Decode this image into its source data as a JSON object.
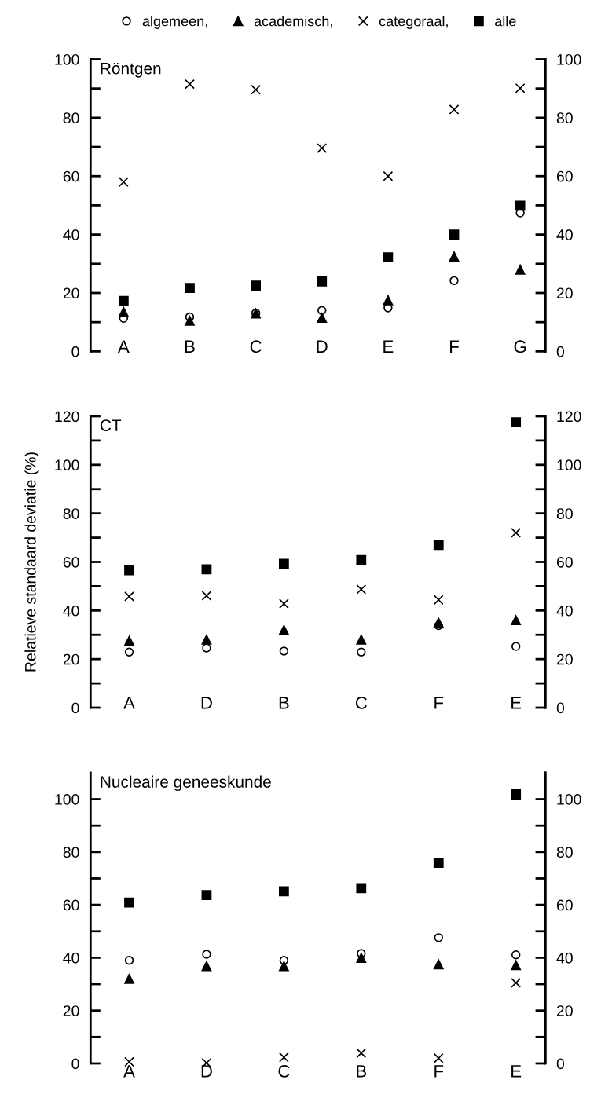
{
  "chart_data": [
    {
      "type": "scatter",
      "title": "Röntgen",
      "legend": "top",
      "categories": [
        "A",
        "B",
        "C",
        "D",
        "E",
        "F",
        "G"
      ],
      "ylim": [
        0,
        100
      ],
      "yticks": [
        0,
        {
          "value": 10,
          "label": null
        },
        20,
        {
          "value": 30,
          "label": null
        },
        40,
        {
          "value": 50,
          "label": null
        },
        60,
        {
          "value": 70,
          "label": null
        },
        80,
        {
          "value": 90,
          "label": null
        },
        100
      ],
      "y2lim": [
        0,
        100
      ],
      "y2ticks": [
        0,
        {
          "value": 10,
          "label": null
        },
        20,
        {
          "value": 30,
          "label": null
        },
        40,
        {
          "value": 50,
          "label": null
        },
        60,
        {
          "value": 70,
          "label": null
        },
        80,
        {
          "value": 90,
          "label": null
        },
        100
      ],
      "series": [
        {
          "name": "algemeen,",
          "color": "#000000",
          "marker": "circle",
          "values": [
            11.3,
            11.8,
            13.1,
            14,
            14.9,
            24.2,
            47.4
          ]
        },
        {
          "name": "academisch,",
          "color": "#000000",
          "marker": "triangle",
          "values": [
            13.5,
            10.5,
            13,
            11.5,
            17.5,
            32.5,
            28
          ]
        },
        {
          "name": "categoraal,",
          "color": "#000000",
          "marker": "cross",
          "values": [
            58,
            91.5,
            89.6,
            69.6,
            60,
            82.8,
            90.1
          ]
        },
        {
          "name": "alle",
          "color": "#000000",
          "marker": "square",
          "values": [
            17.3,
            21.7,
            22.5,
            23.9,
            32.2,
            40,
            49.9
          ]
        }
      ]
    },
    {
      "type": "scatter",
      "title": "CT",
      "ylabel": "Relatieve standaard deviatie (%)",
      "categories": [
        "A",
        "D",
        "B",
        "C",
        "F",
        "E"
      ],
      "ylim": [
        0,
        120
      ],
      "yticks": [
        0,
        {
          "value": 10,
          "label": null
        },
        20,
        {
          "value": 30,
          "label": null
        },
        40,
        {
          "value": 50,
          "label": null
        },
        60,
        {
          "value": 70,
          "label": null
        },
        80,
        {
          "value": 90,
          "label": null
        },
        100,
        {
          "value": 110,
          "label": null
        },
        120
      ],
      "y2lim": [
        0,
        120
      ],
      "y2ticks": [
        0,
        {
          "value": 10,
          "label": null
        },
        20,
        {
          "value": 30,
          "label": null
        },
        40,
        {
          "value": 50,
          "label": null
        },
        60,
        {
          "value": 70,
          "label": null
        },
        80,
        {
          "value": 90,
          "label": null
        },
        100,
        {
          "value": 110,
          "label": null
        },
        120
      ],
      "series": [
        {
          "color": "#000000",
          "marker": "circle",
          "values": [
            22.9,
            24.6,
            23.3,
            22.9,
            33.8,
            25.2
          ]
        },
        {
          "color": "#000000",
          "marker": "triangle",
          "values": [
            27.5,
            28,
            32,
            28,
            35,
            36
          ]
        },
        {
          "color": "#000000",
          "marker": "cross",
          "values": [
            45.8,
            46.1,
            42.8,
            48.7,
            44.4,
            72
          ]
        },
        {
          "color": "#000000",
          "marker": "square",
          "values": [
            56.6,
            57,
            59.2,
            60.8,
            67,
            117.5
          ]
        }
      ]
    },
    {
      "type": "scatter",
      "title": "Nucleaire geneeskunde",
      "categories": [
        "A",
        "D",
        "C",
        "B",
        "F",
        "E"
      ],
      "ylim": [
        0,
        110
      ],
      "yticks": [
        0,
        {
          "value": 10,
          "label": null
        },
        20,
        {
          "value": 30,
          "label": null
        },
        40,
        {
          "value": 50,
          "label": null
        },
        60,
        {
          "value": 70,
          "label": null
        },
        80,
        {
          "value": 90,
          "label": null
        },
        100
      ],
      "y2lim": [
        0,
        110
      ],
      "y2ticks": [
        0,
        {
          "value": 10,
          "label": null
        },
        20,
        {
          "value": 30,
          "label": null
        },
        40,
        {
          "value": 50,
          "label": null
        },
        60,
        {
          "value": 70,
          "label": null
        },
        80,
        {
          "value": 90,
          "label": null
        },
        100
      ],
      "series": [
        {
          "color": "#000000",
          "marker": "circle",
          "values": [
            39,
            41.3,
            39,
            41.6,
            47.6,
            41.1
          ]
        },
        {
          "color": "#000000",
          "marker": "triangle",
          "values": [
            32,
            36.8,
            36.8,
            39.9,
            37.5,
            37.2
          ]
        },
        {
          "color": "#000000",
          "marker": "cross",
          "values": [
            0.6,
            0.2,
            2.3,
            3.9,
            2,
            30.5
          ]
        },
        {
          "color": "#000000",
          "marker": "square",
          "values": [
            60.9,
            63.7,
            65.1,
            66.3,
            75.9,
            101.8
          ]
        }
      ]
    }
  ]
}
